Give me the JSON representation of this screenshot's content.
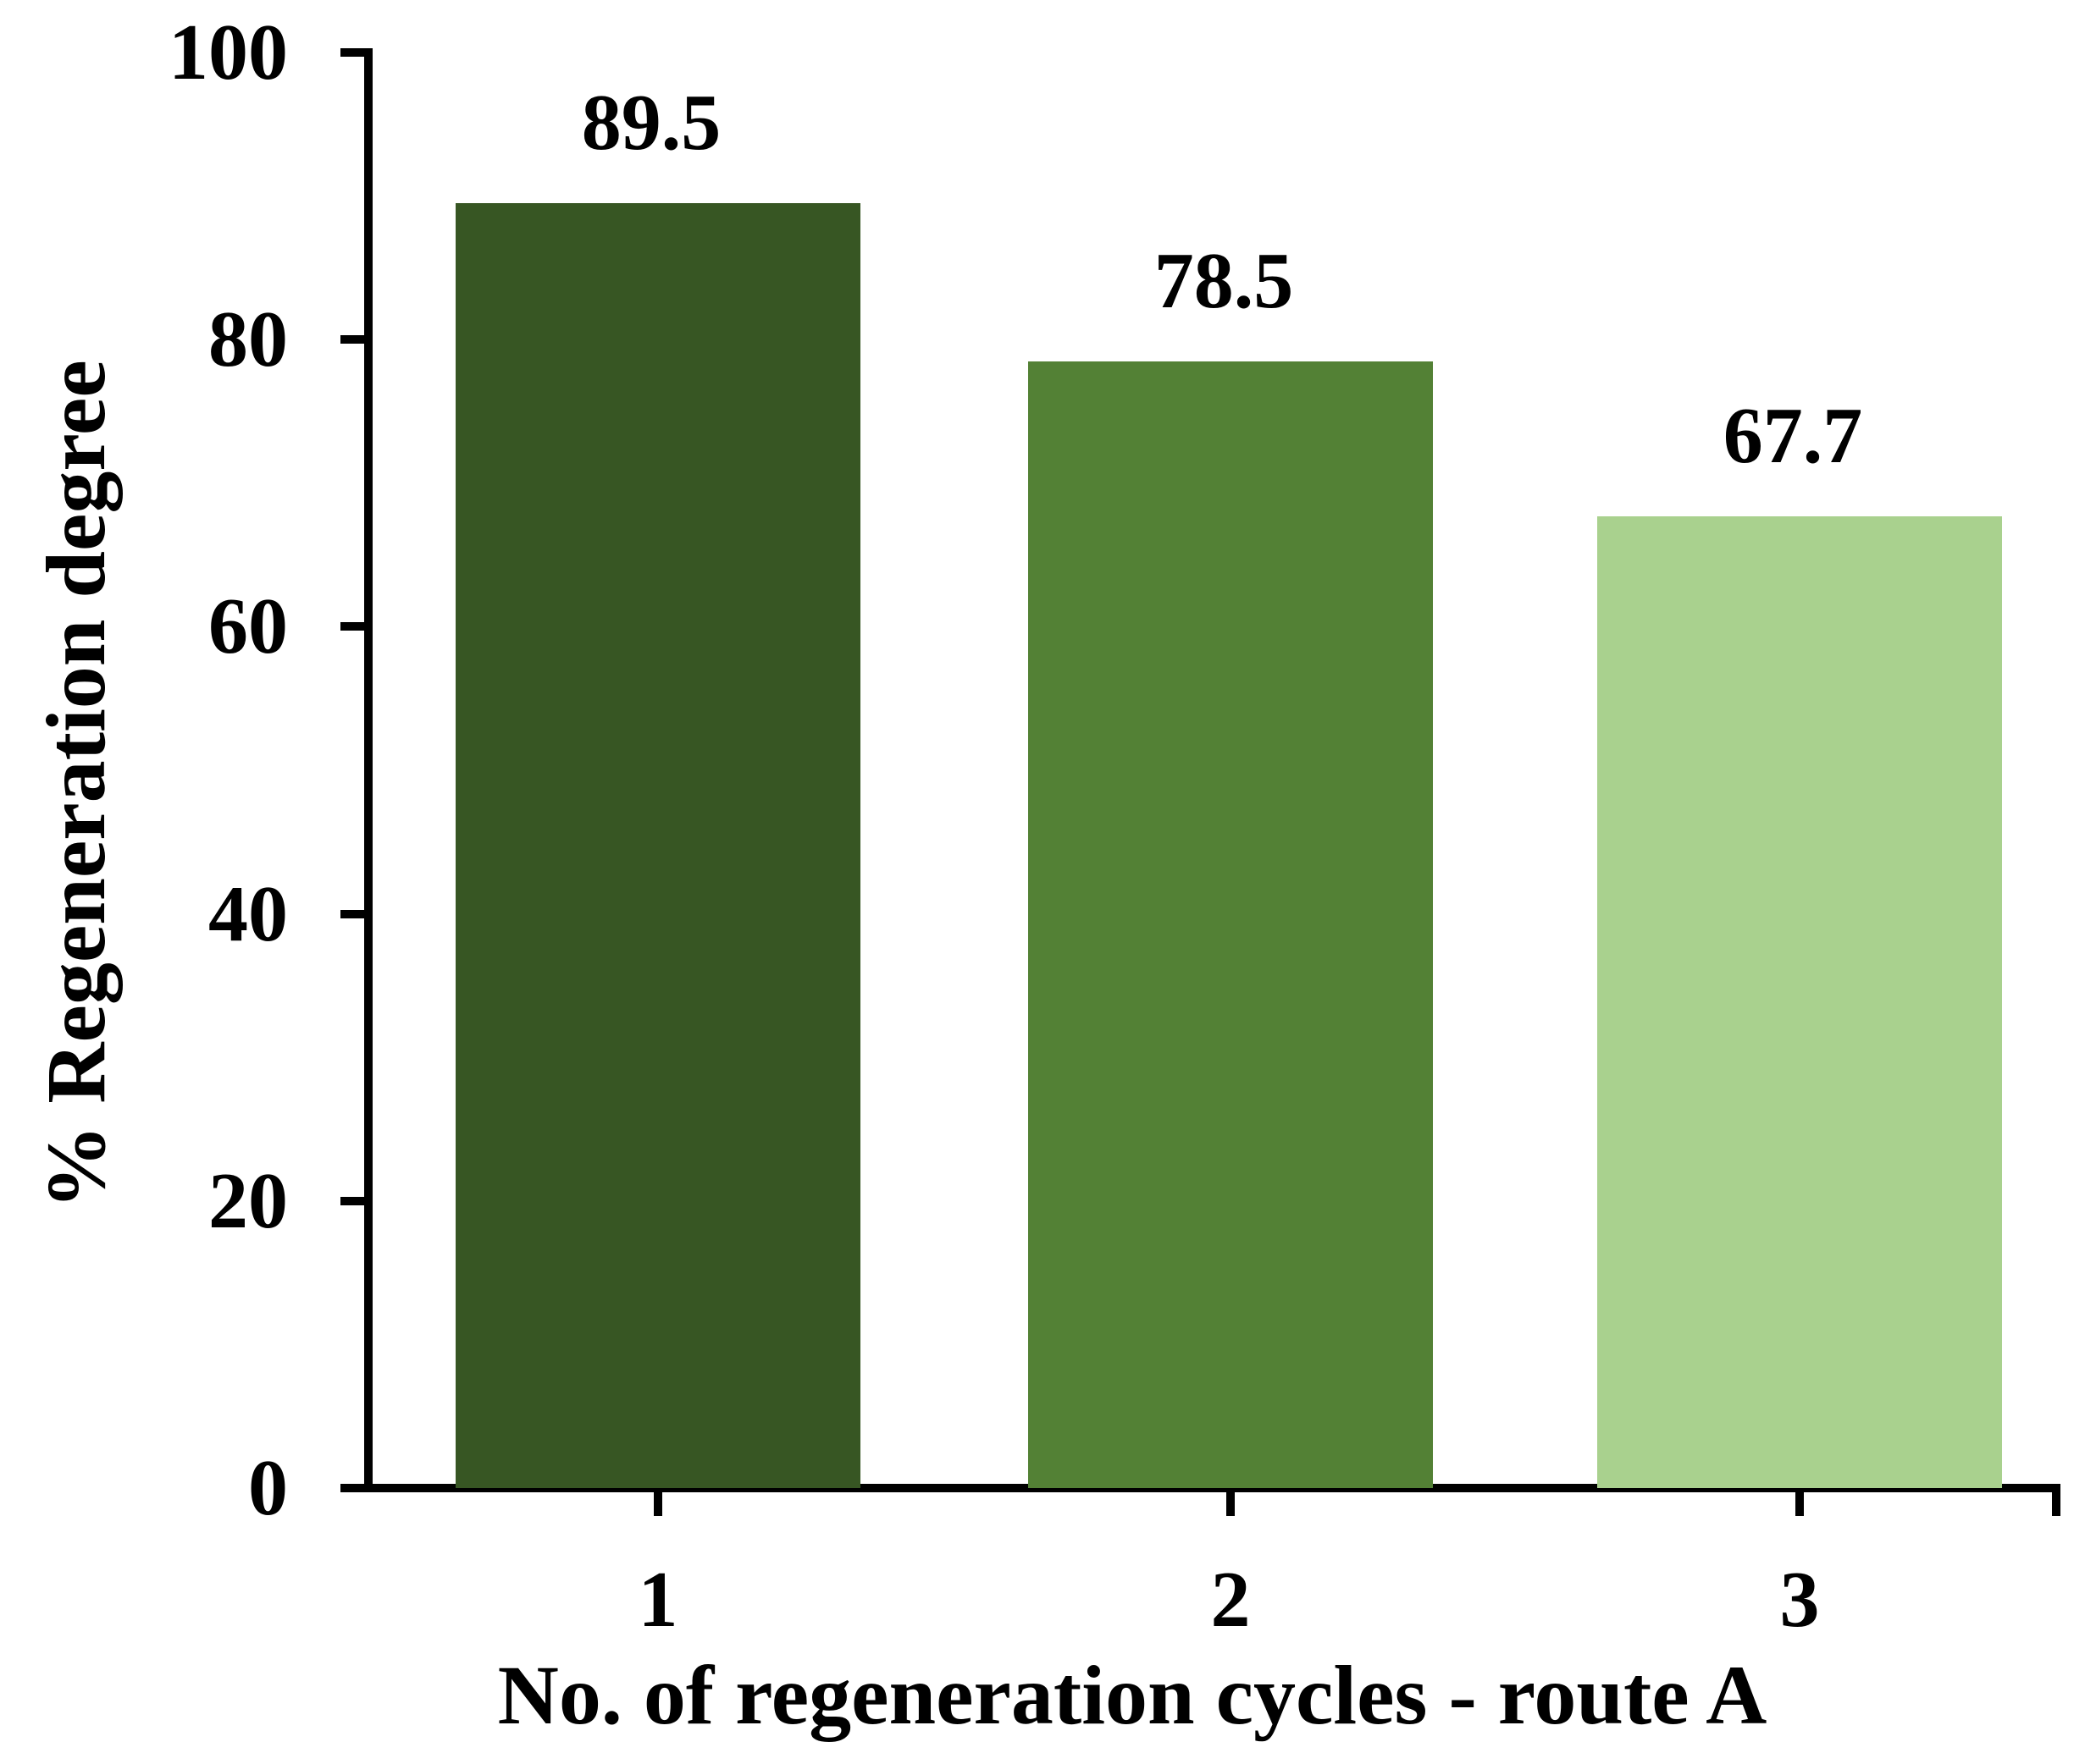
{
  "chart_data": {
    "type": "bar",
    "categories": [
      "1",
      "2",
      "3"
    ],
    "values": [
      89.5,
      78.5,
      67.7
    ],
    "bar_colors": [
      "#375623",
      "#538135",
      "#A9D18E"
    ],
    "xlabel": "No. of regeneration cycles - route A",
    "ylabel": "% Regeneration degree",
    "ylim": [
      0,
      100
    ],
    "yticks": [
      0,
      20,
      40,
      60,
      80,
      100
    ],
    "grid": false,
    "legend_position": "none",
    "axis_color": "#000000",
    "text_color": "#000000",
    "background_color": "#ffffff"
  }
}
